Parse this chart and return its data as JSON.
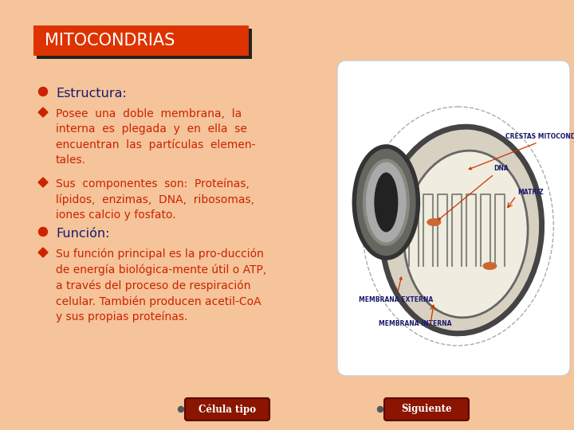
{
  "background_color": "#F5C49A",
  "title_text": "MITOCONDRIAS",
  "title_bg": "#DD3300",
  "title_fg": "#FFFFFF",
  "title_border_color": "#222222",
  "heading_color": "#1A1A6E",
  "body_color": "#CC2200",
  "bullet_circle_color": "#CC2200",
  "bullet_diamond_color": "#CC2200",
  "heading1": "Estructura:",
  "body1": "Posee  una  doble  membrana,  la\ninterna  es  plegada  y  en  ella  se\nencuentran  las  partículas  elemen-\ntales.",
  "body2": "Sus  componentes  son:  Proteínas,\nlípidos,  enzimas,  DNA,  ribosomas,\niones calcio y fosfato.",
  "heading2": "Función:",
  "body3": "Su función principal es la pro-ducción\nde energía biológica-mente útil o ATP,\na través del proceso de respiración\ncelular. También producen acetil-CoA\ny sus propias proteínas.",
  "btn1_text": "Célula tipo",
  "btn2_text": "Siguiente",
  "btn_color": "#8B1500",
  "btn_text_color": "#FFFFFF",
  "image_bg": "#FFFFFF",
  "img_label_color": "#1A1A6E",
  "img_arrow_color": "#CC3300"
}
